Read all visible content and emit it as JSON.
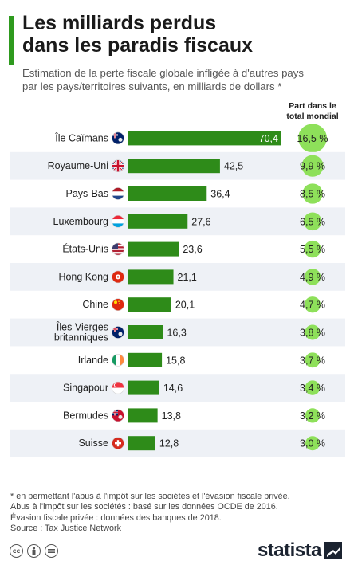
{
  "header": {
    "title_lines": [
      "Les milliards perdus",
      "dans les paradis fiscaux"
    ],
    "subtitle_lines": [
      "Estimation de la perte fiscale globale infligée à d'autres pays",
      "par les pays/territoires suivants, en milliards de dollars *"
    ],
    "share_header_lines": [
      "Part dans le",
      "total mondial"
    ]
  },
  "chart_data": {
    "type": "bar",
    "orientation": "horizontal",
    "categories": [
      "Île Caïmans",
      "Royaume-Uni",
      "Pays-Bas",
      "Luxembourg",
      "États-Unis",
      "Hong Kong",
      "Chine",
      "Îles Vierges britanniques",
      "Irlande",
      "Singapour",
      "Bermudes",
      "Suisse"
    ],
    "category_lines": [
      [
        "Île Caïmans"
      ],
      [
        "Royaume-Uni"
      ],
      [
        "Pays-Bas"
      ],
      [
        "Luxembourg"
      ],
      [
        "États-Unis"
      ],
      [
        "Hong Kong"
      ],
      [
        "Chine"
      ],
      [
        "Îles Vierges",
        "britanniques"
      ],
      [
        "Irlande"
      ],
      [
        "Singapour"
      ],
      [
        "Bermudes"
      ],
      [
        "Suisse"
      ]
    ],
    "values": [
      70.4,
      42.5,
      36.4,
      27.6,
      23.6,
      21.1,
      20.1,
      16.3,
      15.8,
      14.6,
      13.8,
      12.8
    ],
    "value_labels": [
      "70,4",
      "42,5",
      "36,4",
      "27,6",
      "23,6",
      "21,1",
      "20,1",
      "16,3",
      "15,8",
      "14,6",
      "13,8",
      "12,8"
    ],
    "share_values": [
      16.5,
      9.9,
      8.5,
      6.5,
      5.5,
      4.9,
      4.7,
      3.8,
      3.7,
      3.4,
      3.2,
      3.0
    ],
    "share_labels": [
      "16,5 %",
      "9,9 %",
      "8,5 %",
      "6,5 %",
      "5,5 %",
      "4,9 %",
      "4,7 %",
      "3,8 %",
      "3,7 %",
      "3,4 %",
      "3,2 %",
      "3,0 %"
    ],
    "flags": [
      "cayman-flag-icon",
      "uk-flag-icon",
      "netherlands-flag-icon",
      "luxembourg-flag-icon",
      "usa-flag-icon",
      "hong-kong-flag-icon",
      "china-flag-icon",
      "bvi-flag-icon",
      "ireland-flag-icon",
      "singapore-flag-icon",
      "bermuda-flag-icon",
      "switzerland-flag-icon"
    ],
    "xlim": [
      0,
      70.4
    ],
    "bar_color": "#2e8b19",
    "bubble_color": "#8ee05a",
    "row_stripe_color": "#eef1f6"
  },
  "footnotes": [
    "* en permettant l'abus à l'impôt sur les sociétés et l'évasion fiscale privée.",
    "Abus à l'impôt sur les sociétés : basé sur les données OCDE de 2016.",
    "Évasion fiscale privée : données des banques de 2018.",
    "Source : Tax Justice Network"
  ],
  "footer": {
    "license_icons": [
      "creative-commons-icon",
      "attribution-icon",
      "no-derivatives-icon"
    ],
    "brand": "statista"
  }
}
